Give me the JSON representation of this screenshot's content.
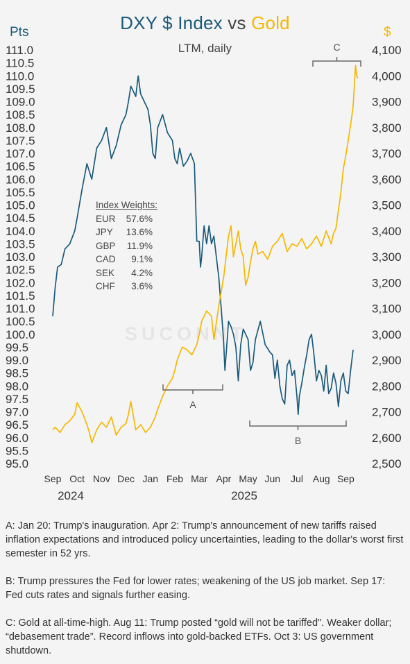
{
  "title": {
    "part1": "DXY $ Index",
    "part2": " vs ",
    "part3": "Gold"
  },
  "subtitle": "LTM, daily",
  "units": {
    "left": "Pts",
    "right": "$"
  },
  "watermark": "SUCONNT",
  "colors": {
    "dxy": "#1b5a7a",
    "gold": "#f5b800",
    "annotation": "#666666"
  },
  "legend": {
    "header": "Index Weights:",
    "rows": [
      {
        "ccy": "EUR",
        "pct": "57.6%"
      },
      {
        "ccy": "JPY",
        "pct": "13.6%"
      },
      {
        "ccy": "GBP",
        "pct": "11.9%"
      },
      {
        "ccy": "CAD",
        "pct": "9.1%"
      },
      {
        "ccy": "SEK",
        "pct": "4.2%"
      },
      {
        "ccy": "CHF",
        "pct": "3.6%"
      }
    ]
  },
  "annotations": [
    {
      "label": "A"
    },
    {
      "label": "B"
    },
    {
      "label": "C"
    }
  ],
  "notes": {
    "a": "A: Jan 20: Trump's inauguration. Apr 2: Trump's announcement of new tariffs raised inflation expectations and introduced policy uncertainties, leading to the dollar's worst first semester in 52 yrs.",
    "b": "B: Trump pressures the Fed for lower rates; weakening of the US job market. Sep 17: Fed cuts rates and signals further easing.",
    "c": "C: Gold at all-time-high. Aug 11: Trump posted “gold will not be tariffed\". Weaker dollar;  “debasement trade”. Record inflows into gold-backed ETFs. Oct 3: US government shutdown."
  },
  "chart_data": {
    "type": "line",
    "title": "DXY $ Index vs Gold",
    "subtitle": "LTM, daily",
    "x_tick_labels": [
      "Sep",
      "Oct",
      "Nov",
      "Dec",
      "Jan",
      "Feb",
      "Mar",
      "Apr",
      "May",
      "Jun",
      "Jul",
      "Aug",
      "Sep"
    ],
    "x_year_labels": [
      "2024",
      "2025"
    ],
    "y_left": {
      "label": "Pts",
      "lim": [
        95.0,
        111.0
      ],
      "ticks": [
        "95.0",
        "95.5",
        "96.0",
        "96.5",
        "97.0",
        "97.5",
        "98.0",
        "98.5",
        "99.0",
        "99.5",
        "100.0",
        "100.5",
        "101.0",
        "101.5",
        "102.0",
        "102.5",
        "103.0",
        "103.5",
        "104.0",
        "104.5",
        "105.0",
        "105.5",
        "106.0",
        "106.5",
        "107.0",
        "107.5",
        "108.0",
        "108.5",
        "109.0",
        "109.5",
        "110.0",
        "110.5",
        "111.0"
      ]
    },
    "y_right": {
      "label": "$",
      "lim": [
        2500,
        4100
      ],
      "ticks": [
        "2,500",
        "2,600",
        "2,700",
        "2,800",
        "2,900",
        "3,000",
        "3,100",
        "3,200",
        "3,300",
        "3,400",
        "3,500",
        "3,600",
        "3,700",
        "3,800",
        "3,900",
        "4,000",
        "4,100"
      ]
    },
    "series": [
      {
        "name": "DXY $ Index",
        "axis": "left",
        "x_month_index": [
          0.0,
          0.1,
          0.2,
          0.35,
          0.5,
          0.7,
          0.9,
          1.0,
          1.2,
          1.4,
          1.6,
          1.8,
          2.0,
          2.2,
          2.4,
          2.6,
          2.8,
          3.0,
          3.1,
          3.2,
          3.4,
          3.5,
          3.6,
          3.75,
          3.9,
          4.0,
          4.1,
          4.2,
          4.3,
          4.5,
          4.7,
          4.9,
          5.0,
          5.1,
          5.2,
          5.35,
          5.5,
          5.65,
          5.8,
          5.9,
          6.0,
          6.05,
          6.1,
          6.2,
          6.3,
          6.4,
          6.5,
          6.6,
          6.7,
          6.8,
          6.9,
          7.0,
          7.05,
          7.1,
          7.2,
          7.3,
          7.4,
          7.5,
          7.6,
          7.7,
          7.8,
          7.9,
          8.0,
          8.1,
          8.2,
          8.3,
          8.5,
          8.7,
          8.9,
          9.0,
          9.1,
          9.2,
          9.3,
          9.4,
          9.5,
          9.6,
          9.7,
          9.8,
          9.9,
          10.0,
          10.05,
          10.1,
          10.2,
          10.3,
          10.4,
          10.5,
          10.6,
          10.7,
          10.8,
          10.9,
          11.0,
          11.1,
          11.2,
          11.3,
          11.4,
          11.5,
          11.6,
          11.7,
          11.8,
          11.9,
          12.0,
          12.1,
          12.2,
          12.3
        ],
        "values": [
          100.7,
          101.8,
          102.6,
          102.7,
          103.3,
          103.5,
          104.0,
          104.5,
          105.6,
          106.6,
          106.0,
          107.2,
          107.5,
          108.0,
          106.8,
          107.3,
          108.1,
          108.5,
          109.0,
          109.6,
          109.2,
          110.0,
          109.3,
          109.0,
          108.7,
          108.1,
          107.0,
          106.8,
          108.0,
          108.5,
          107.8,
          107.5,
          106.8,
          106.6,
          107.2,
          106.5,
          106.7,
          107.0,
          106.6,
          103.6,
          103.6,
          102.6,
          103.0,
          104.2,
          103.5,
          104.2,
          103.5,
          103.8,
          103.0,
          102.2,
          101.0,
          99.7,
          98.6,
          99.2,
          100.5,
          100.3,
          100.0,
          99.5,
          98.2,
          99.6,
          100.2,
          100.0,
          99.8,
          98.6,
          98.9,
          99.8,
          100.5,
          99.6,
          99.3,
          99.2,
          98.3,
          99.0,
          98.0,
          97.5,
          97.3,
          98.8,
          99.0,
          98.4,
          98.6,
          97.6,
          96.9,
          97.6,
          98.1,
          98.7,
          99.2,
          99.8,
          100.0,
          99.2,
          98.2,
          98.6,
          98.4,
          97.8,
          98.8,
          97.7,
          97.9,
          98.5,
          98.1,
          97.2,
          98.2,
          98.5,
          97.8,
          97.7,
          98.6,
          99.4
        ]
      },
      {
        "name": "Gold",
        "axis": "right",
        "x_month_index": [
          0.0,
          0.1,
          0.3,
          0.5,
          0.7,
          0.9,
          1.0,
          1.2,
          1.4,
          1.5,
          1.6,
          1.8,
          2.0,
          2.2,
          2.4,
          2.6,
          2.8,
          3.0,
          3.1,
          3.2,
          3.4,
          3.6,
          3.8,
          4.0,
          4.2,
          4.3,
          4.5,
          4.7,
          4.9,
          5.0,
          5.1,
          5.3,
          5.5,
          5.7,
          5.9,
          6.0,
          6.1,
          6.3,
          6.5,
          6.6,
          6.8,
          7.0,
          7.1,
          7.2,
          7.3,
          7.4,
          7.5,
          7.6,
          7.7,
          7.8,
          7.9,
          8.0,
          8.1,
          8.2,
          8.3,
          8.4,
          8.6,
          8.8,
          9.0,
          9.2,
          9.4,
          9.6,
          9.8,
          10.0,
          10.2,
          10.4,
          10.6,
          10.8,
          11.0,
          11.2,
          11.4,
          11.5,
          11.6,
          11.7,
          11.8,
          11.9,
          12.0,
          12.1,
          12.2,
          12.3,
          12.35,
          12.4,
          12.45,
          12.5
        ],
        "values": [
          2630,
          2640,
          2620,
          2650,
          2665,
          2690,
          2735,
          2700,
          2650,
          2620,
          2580,
          2630,
          2660,
          2640,
          2680,
          2610,
          2640,
          2655,
          2690,
          2740,
          2630,
          2650,
          2620,
          2640,
          2680,
          2710,
          2760,
          2800,
          2830,
          2860,
          2900,
          2950,
          2940,
          2920,
          2960,
          3000,
          3050,
          3090,
          3070,
          2980,
          3110,
          3220,
          3300,
          3380,
          3420,
          3300,
          3350,
          3400,
          3330,
          3300,
          3190,
          3220,
          3280,
          3330,
          3360,
          3310,
          3320,
          3290,
          3340,
          3360,
          3390,
          3320,
          3350,
          3340,
          3370,
          3330,
          3350,
          3380,
          3340,
          3400,
          3350,
          3390,
          3410,
          3480,
          3550,
          3640,
          3690,
          3750,
          3810,
          3880,
          3960,
          4040,
          4000,
          3990
        ]
      }
    ]
  }
}
